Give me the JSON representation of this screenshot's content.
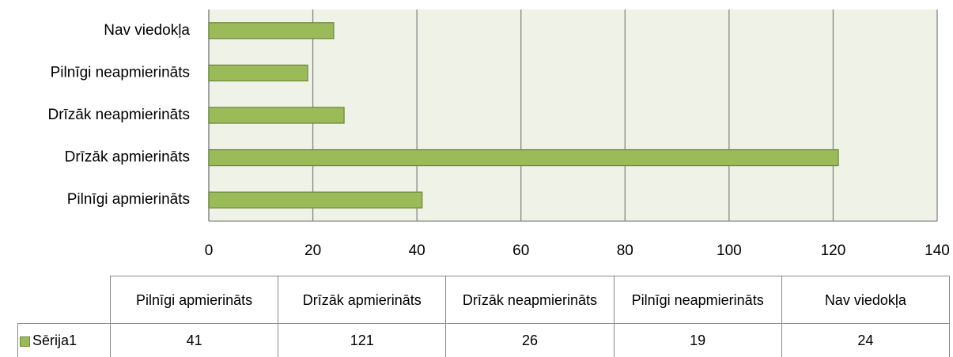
{
  "chart_data": {
    "type": "bar",
    "categories": [
      "Pilnīgi apmierināts",
      "Drīzāk apmierināts",
      "Drīzāk neapmierināts",
      "Pilnīgi neapmierināts",
      "Nav viedokļa"
    ],
    "series": [
      {
        "name": "Sērija1",
        "color": "#9bbb59",
        "values": [
          41,
          121,
          26,
          19,
          24
        ]
      }
    ],
    "xlim": [
      0,
      140
    ],
    "xticks": [
      0,
      20,
      40,
      60,
      80,
      100,
      120,
      140
    ],
    "grid": true,
    "orientation": "horizontal",
    "data_table": true
  }
}
